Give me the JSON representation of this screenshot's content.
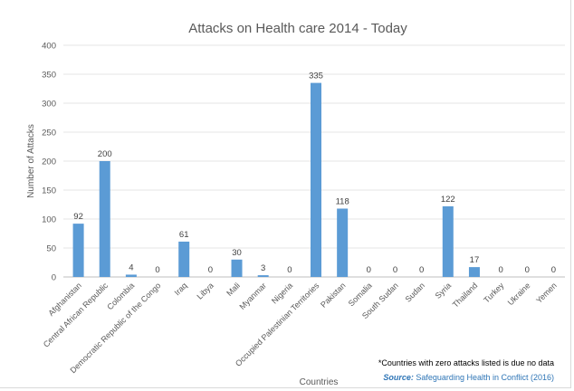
{
  "chart_data": {
    "type": "bar",
    "title": "Attacks on Health care 2014 - Today",
    "xlabel": "Countries",
    "ylabel": "Number of Attacks",
    "ylim": [
      0,
      400
    ],
    "yticks": [
      0,
      50,
      100,
      150,
      200,
      250,
      300,
      350,
      400
    ],
    "grid": true,
    "legend": "none",
    "categories": [
      "Afghanistan",
      "Central African Republic",
      "Colombia",
      "Democratic Republic of the Congo",
      "Iraq",
      "Libya",
      "Mali",
      "Myanmar",
      "Nigeria",
      "Occupied Palestinian Territories",
      "Pakistan",
      "Somalia",
      "South Sudan",
      "Sudan",
      "Syria",
      "Thailand",
      "Turkey",
      "Ukraine",
      "Yemen"
    ],
    "series": [
      {
        "values": [
          92,
          200,
          4,
          0,
          61,
          0,
          30,
          3,
          0,
          335,
          118,
          0,
          0,
          0,
          122,
          17,
          0,
          0,
          0
        ]
      }
    ],
    "bar_color": "#5B9BD5"
  },
  "footnote": "*Countries with zero attacks listed is due no data",
  "source": {
    "prefix": "Source:",
    "text": " Safeguarding Health in Conflict (2016)"
  }
}
